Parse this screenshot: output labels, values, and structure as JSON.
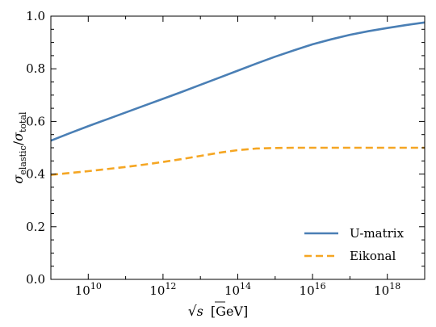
{
  "chart_data": {
    "type": "line",
    "x_scale": "log",
    "x_tick_base": "10",
    "xlim": [
      1000000000.0,
      1e+19
    ],
    "ylim": [
      0.0,
      1.0
    ],
    "x_ticks": [
      {
        "value": 10000000000.0,
        "exp": "10"
      },
      {
        "value": 1000000000000.0,
        "exp": "12"
      },
      {
        "value": 100000000000000.0,
        "exp": "14"
      },
      {
        "value": 1e+16,
        "exp": "16"
      },
      {
        "value": 1e+18,
        "exp": "18"
      }
    ],
    "y_ticks": [
      {
        "value": 0.0,
        "label": "0.0"
      },
      {
        "value": 0.2,
        "label": "0.2"
      },
      {
        "value": 0.4,
        "label": "0.4"
      },
      {
        "value": 0.6,
        "label": "0.6"
      },
      {
        "value": 0.8,
        "label": "0.8"
      },
      {
        "value": 1.0,
        "label": "1.0"
      }
    ],
    "xlabel": {
      "main": "s",
      "unit": "[GeV]"
    },
    "ylabel": {
      "num": "elastic",
      "den": "total"
    },
    "grid": false,
    "legend_position": "bottom-right",
    "series": [
      {
        "name": "U-matrix",
        "color": "#4a7fb5",
        "dash": "solid",
        "x": [
          1000000000.0,
          3160000000.0,
          10000000000.0,
          31600000000.0,
          100000000000.0,
          316000000000.0,
          1000000000000.0,
          3160000000000.0,
          10000000000000.0,
          31600000000000.0,
          100000000000000.0,
          316000000000000.0,
          1000000000000000.0,
          3160000000000000.0,
          1e+16,
          3.16e+16,
          1e+17,
          3.16e+17,
          1e+18,
          3.16e+18,
          1e+19
        ],
        "y": [
          0.527,
          0.555,
          0.582,
          0.608,
          0.634,
          0.66,
          0.686,
          0.712,
          0.739,
          0.766,
          0.793,
          0.82,
          0.846,
          0.87,
          0.893,
          0.912,
          0.929,
          0.943,
          0.955,
          0.966,
          0.976
        ]
      },
      {
        "name": "Eikonal",
        "color": "#f5a623",
        "dash": "dashed",
        "x": [
          1000000000.0,
          3160000000.0,
          10000000000.0,
          31600000000.0,
          100000000000.0,
          316000000000.0,
          1000000000000.0,
          3160000000000.0,
          10000000000000.0,
          31600000000000.0,
          100000000000000.0,
          316000000000000.0,
          1000000000000000.0,
          3160000000000000.0,
          1e+16,
          3.16e+16,
          1e+17,
          3.16e+17,
          1e+18,
          3.16e+18,
          1e+19
        ],
        "y": [
          0.397,
          0.404,
          0.411,
          0.419,
          0.427,
          0.436,
          0.446,
          0.457,
          0.469,
          0.481,
          0.491,
          0.497,
          0.499,
          0.5,
          0.5,
          0.5,
          0.5,
          0.5,
          0.5,
          0.5,
          0.5
        ]
      }
    ]
  }
}
